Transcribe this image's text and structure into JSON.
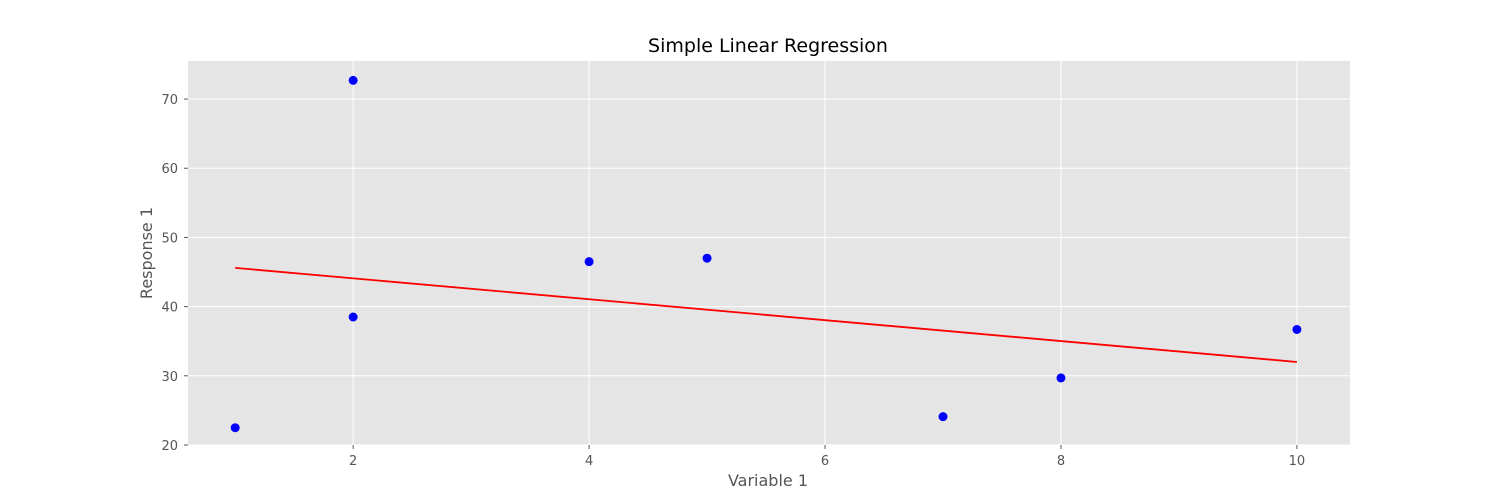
{
  "chart_data": {
    "type": "scatter",
    "title": "Simple Linear Regression",
    "xlabel": "Variable 1",
    "ylabel": "Response 1",
    "xlim": [
      0.6,
      10.45
    ],
    "ylim": [
      20,
      75.5
    ],
    "xticks": [
      2,
      4,
      6,
      8,
      10
    ],
    "yticks": [
      20,
      30,
      40,
      50,
      60,
      70
    ],
    "grid": true,
    "background": "#e5e5e5",
    "gridColor": "#ffffff",
    "series": [
      {
        "kind": "scatter",
        "color": "#0000ff",
        "points": [
          {
            "x": 1,
            "y": 22.5
          },
          {
            "x": 2,
            "y": 72.7
          },
          {
            "x": 2,
            "y": 38.5
          },
          {
            "x": 4,
            "y": 46.5
          },
          {
            "x": 5,
            "y": 47.0
          },
          {
            "x": 7,
            "y": 24.1
          },
          {
            "x": 8,
            "y": 29.7
          },
          {
            "x": 10,
            "y": 36.7
          }
        ]
      },
      {
        "kind": "line",
        "color": "#ff0000",
        "points": [
          {
            "x": 1,
            "y": 45.6
          },
          {
            "x": 10,
            "y": 32.0
          }
        ]
      }
    ]
  }
}
